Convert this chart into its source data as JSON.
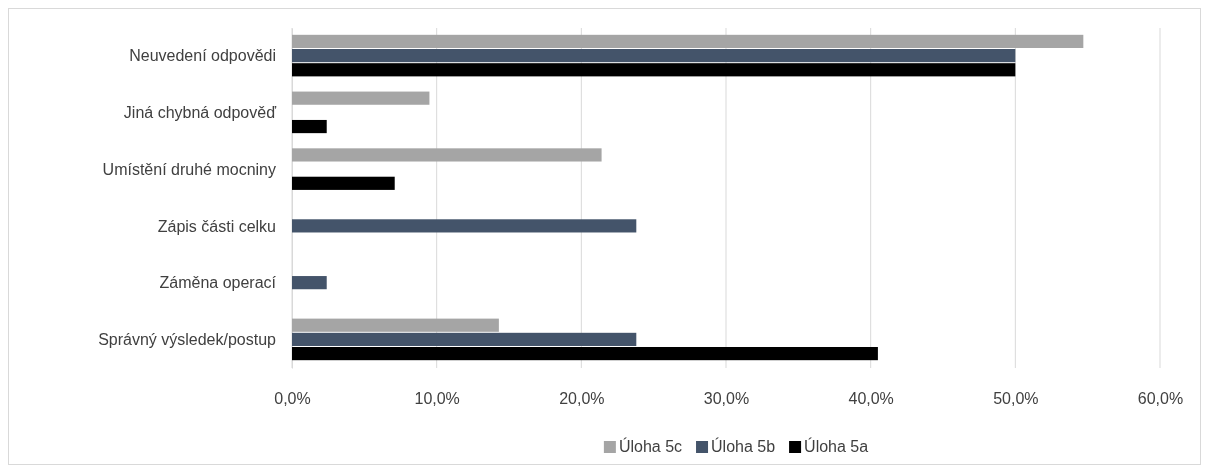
{
  "chart_data": {
    "type": "bar",
    "orientation": "horizontal",
    "categories": [
      "Neuvedení odpovědi",
      "Jiná chybná odpověď",
      "Umístění druhé mocniny",
      "Zápis části celku",
      "Záměna operací",
      "Správný výsledek/postup"
    ],
    "series": [
      {
        "name": "Úloha 5c",
        "color": "#a5a5a5",
        "values": [
          54.7,
          9.5,
          21.4,
          null,
          null,
          14.3
        ]
      },
      {
        "name": "Úloha 5b",
        "color": "#44546a",
        "values": [
          50.0,
          null,
          null,
          23.8,
          2.4,
          23.8
        ]
      },
      {
        "name": "Úloha 5a",
        "color": "#000000",
        "values": [
          50.0,
          2.4,
          7.1,
          null,
          null,
          40.5
        ]
      }
    ],
    "xlim": [
      0,
      60
    ],
    "xticks": [
      {
        "value": 0,
        "label": "0,0%"
      },
      {
        "value": 10,
        "label": "10,0%"
      },
      {
        "value": 20,
        "label": "20,0%"
      },
      {
        "value": 30,
        "label": "30,0%"
      },
      {
        "value": 40,
        "label": "40,0%"
      },
      {
        "value": 50,
        "label": "50,0%"
      },
      {
        "value": 60,
        "label": "60,0%"
      }
    ],
    "grid": "x",
    "legend": "bottom"
  }
}
